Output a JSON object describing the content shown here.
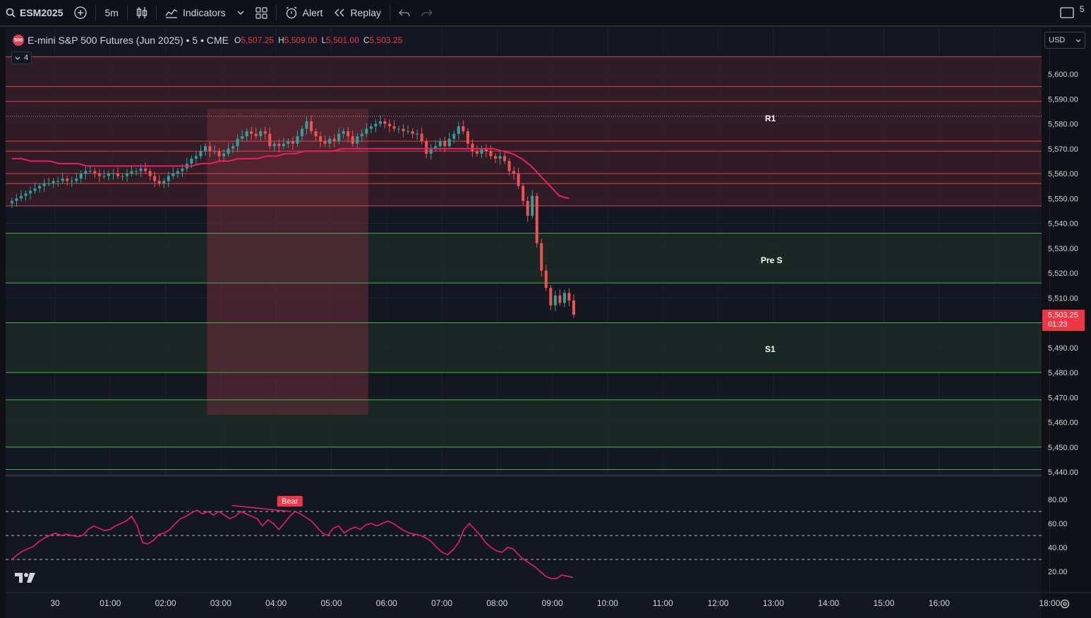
{
  "toolbar": {
    "symbol": "ESM2025",
    "interval": "5m",
    "indicators_label": "Indicators",
    "alert_label": "Alert",
    "replay_label": "Replay",
    "right_cut_text": "5"
  },
  "legend": {
    "badge": "500",
    "title": "E-mini S&P 500 Futures (Jun 2025) • 5 • CME",
    "open_label": "O",
    "open": "5,507.25",
    "high_label": "H",
    "high": "5,509.00",
    "low_label": "L",
    "low": "5,501.00",
    "close_label": "C",
    "close": "5,503.25"
  },
  "collapse_count": "4",
  "currency": "USD",
  "price_tag": {
    "price": "5,503.25",
    "countdown": "01:23"
  },
  "zone_labels": {
    "r1": "R1",
    "pre_s": "Pre S",
    "s1": "S1"
  },
  "rsi_signal": "Bear",
  "colors": {
    "up": "#26a69a",
    "down": "#ef5350",
    "ma": "#e91e63",
    "resistance_zone": "#3a1f2a",
    "support_zone": "#1c2a26",
    "resistance_line": "#e0404a",
    "support_line": "#4caf50",
    "box": "#6b2e38"
  },
  "chart_data": {
    "type": "candlestick",
    "price_axis_ticks": [
      "5,600.00",
      "5,590.00",
      "5,580.00",
      "5,570.00",
      "5,560.00",
      "5,550.00",
      "5,540.00",
      "5,530.00",
      "5,520.00",
      "5,510.00",
      "5,490.00",
      "5,480.00",
      "5,470.00",
      "5,460.00",
      "5,450.00",
      "5,440.00"
    ],
    "time_axis_ticks": [
      "30",
      "01:00",
      "02:00",
      "03:00",
      "04:00",
      "05:00",
      "06:00",
      "07:00",
      "08:00",
      "09:00",
      "10:00",
      "11:00",
      "12:00",
      "13:00",
      "14:00",
      "15:00",
      "16:00",
      "18:00"
    ],
    "rsi_axis_ticks": [
      "80.00",
      "60.00",
      "40.00",
      "20.00"
    ],
    "ylim": [
      5440,
      5605
    ],
    "rsi_ylim": [
      10,
      90
    ],
    "resistance_levels": [
      5607,
      5595,
      5589,
      5573,
      5569,
      5560,
      5556,
      5547
    ],
    "support_levels": [
      5536,
      5516,
      5500,
      5480,
      5469,
      5450,
      5441
    ],
    "dotted_level": 5583,
    "resistance_zones": [
      [
        5547,
        5607
      ]
    ],
    "support_zones": [
      [
        5516,
        5536
      ],
      [
        5480,
        5500
      ],
      [
        5450,
        5469
      ]
    ],
    "session_box": {
      "start": "02:45",
      "end": "05:40",
      "high": 5586,
      "low": 5463
    },
    "candles_close": [
      5549,
      5550,
      5551,
      5552,
      5553,
      5554,
      5555,
      5556,
      5556,
      5557,
      5557,
      5558,
      5557,
      5557,
      5558,
      5560,
      5561,
      5561,
      5560,
      5559,
      5559,
      5560,
      5560,
      5559,
      5559,
      5560,
      5561,
      5561,
      5562,
      5561,
      5559,
      5557,
      5556,
      5557,
      5559,
      5560,
      5561,
      5562,
      5564,
      5566,
      5567,
      5569,
      5571,
      5569,
      5569,
      5567,
      5568,
      5570,
      5571,
      5574,
      5575,
      5577,
      5576,
      5575,
      5577,
      5576,
      5571,
      5572,
      5571,
      5572,
      5573,
      5572,
      5575,
      5578,
      5581,
      5577,
      5575,
      5573,
      5572,
      5574,
      5573,
      5576,
      5577,
      5575,
      5572,
      5575,
      5576,
      5578,
      5579,
      5580,
      5581,
      5580,
      5579,
      5578,
      5578,
      5577,
      5577,
      5576,
      5576,
      5573,
      5568,
      5570,
      5571,
      5573,
      5571,
      5574,
      5576,
      5579,
      5577,
      5572,
      5569,
      5568,
      5570,
      5569,
      5567,
      5566,
      5567,
      5565,
      5561,
      5560,
      5555,
      5549,
      5543,
      5551,
      5532,
      5521,
      5514,
      5507,
      5511,
      5508,
      5512,
      5509,
      5503.25
    ],
    "ma_values": [
      5566,
      5566,
      5565,
      5565,
      5565,
      5564,
      5564,
      5564,
      5563,
      5563,
      5563,
      5563,
      5563,
      5563,
      5563,
      5563,
      5563,
      5563,
      5563,
      5563,
      5564,
      5564,
      5565,
      5565,
      5566,
      5566,
      5566,
      5567,
      5567,
      5568,
      5568,
      5569,
      5569,
      5569,
      5569,
      5570,
      5570,
      5570,
      5570,
      5570,
      5570,
      5570,
      5570,
      5570,
      5570,
      5570,
      5570,
      5570,
      5570,
      5570,
      5570,
      5570,
      5569,
      5568,
      5566,
      5563,
      5559,
      5555,
      5551,
      5550
    ],
    "rsi_values": [
      30,
      34,
      37,
      39,
      41,
      45,
      48,
      50,
      52,
      50,
      51,
      50,
      49,
      50,
      55,
      58,
      56,
      54,
      55,
      58,
      60,
      62,
      66,
      58,
      44,
      43,
      46,
      51,
      52,
      55,
      60,
      64,
      66,
      69,
      71,
      68,
      70,
      67,
      70,
      67,
      64,
      66,
      70,
      68,
      66,
      64,
      58,
      63,
      60,
      55,
      60,
      66,
      70,
      68,
      65,
      62,
      57,
      52,
      50,
      56,
      58,
      52,
      55,
      57,
      55,
      59,
      60,
      58,
      60,
      62,
      60,
      57,
      54,
      52,
      51,
      50,
      48,
      45,
      40,
      36,
      34,
      38,
      44,
      55,
      60,
      55,
      50,
      44,
      40,
      37,
      36,
      40,
      39,
      34,
      30,
      27,
      24,
      20,
      16,
      14,
      14,
      17,
      16,
      15
    ],
    "rsi_levels": [
      70,
      50,
      30
    ]
  }
}
